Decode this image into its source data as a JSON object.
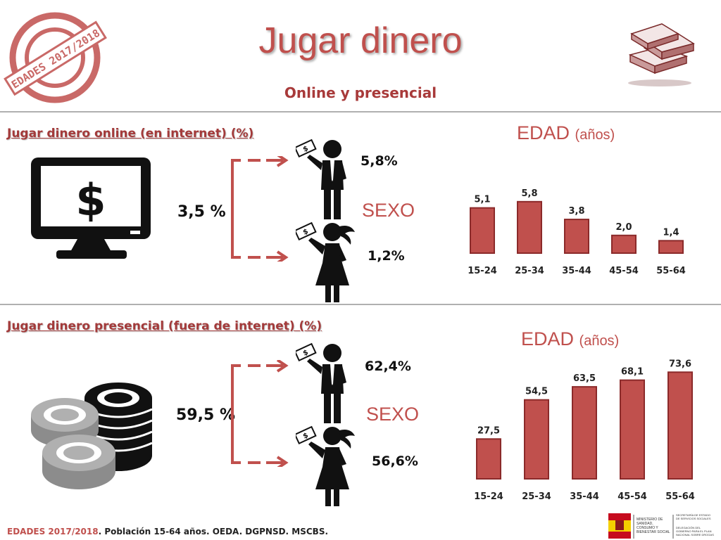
{
  "header": {
    "title": "Jugar dinero",
    "subtitle": "Online y presencial",
    "stamp_text": "EDADES 2017/2018"
  },
  "online": {
    "section_title": "Jugar dinero online (en internet) (%)",
    "total": "3,5 %",
    "male_pct": "5,8%",
    "female_pct": "1,2%",
    "sexo_label": "SEXO",
    "edad_label": "EDAD",
    "edad_unit": "(años)"
  },
  "presencial": {
    "section_title": "Jugar dinero presencial (fuera de internet) (%)",
    "total": "59,5 %",
    "male_pct": "62,4%",
    "female_pct": "56,6%",
    "sexo_label": "SEXO",
    "edad_label": "EDAD",
    "edad_unit": "(años)"
  },
  "footer": {
    "source_em": "EDADES 2017/2018",
    "source_rest": ". Población 15-64 años. OEDA. DGPNSD. MSCBS."
  },
  "ministry": {
    "line1": "MINISTERIO DE SANIDAD, CONSUMO Y BIENESTAR SOCIAL",
    "line2": "SECRETARÍA DE ESTADO DE SERVICIOS SOCIALES",
    "line3": "DELEGACIÓN DEL GOBIERNO PARA EL PLAN NACIONAL SOBRE DROGAS"
  },
  "colors": {
    "accent": "#c0504d",
    "bar": "#c0504d",
    "bar_edge": "#8b2a2a"
  },
  "chart_data": [
    {
      "type": "bar",
      "title": "EDAD (años)",
      "categories": [
        "15-24",
        "25-34",
        "35-44",
        "45-54",
        "55-64"
      ],
      "values": [
        5.1,
        5.8,
        3.8,
        2.0,
        1.4
      ],
      "labels": [
        "5,1",
        "5,8",
        "3,8",
        "2,0",
        "1,4"
      ],
      "ylim": [
        0,
        6.5
      ]
    },
    {
      "type": "bar",
      "title": "EDAD (años)",
      "categories": [
        "15-24",
        "25-34",
        "35-44",
        "45-54",
        "55-64"
      ],
      "values": [
        27.5,
        54.5,
        63.5,
        68.1,
        73.6
      ],
      "labels": [
        "27,5",
        "54,5",
        "63,5",
        "68,1",
        "73,6"
      ],
      "ylim": [
        0,
        82
      ]
    }
  ]
}
